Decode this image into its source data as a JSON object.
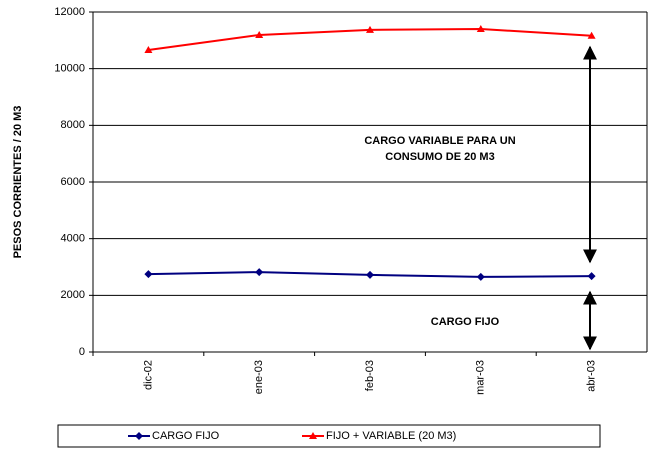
{
  "chart_data": {
    "type": "line",
    "y_label": "PESOS CORRIENTES / 20 M3",
    "categories": [
      "dic-02",
      "ene-03",
      "feb-03",
      "mar-03",
      "abr-03"
    ],
    "series": [
      {
        "name": "CARGO FIJO",
        "color": "#000080",
        "marker": "diamond",
        "values": [
          2750,
          2820,
          2720,
          2650,
          2680
        ]
      },
      {
        "name": "FIJO + VARIABLE (20 M3)",
        "color": "#ff0000",
        "marker": "triangle",
        "values": [
          10660,
          11190,
          11370,
          11400,
          11160
        ]
      }
    ],
    "annotations": [
      "CARGO  VARIABLE PARA UN",
      "CONSUMO DE 20 M3",
      "CARGO FIJO"
    ],
    "ylim": [
      0,
      12000
    ],
    "yticks": [
      0,
      2000,
      4000,
      6000,
      8000,
      10000,
      12000
    ],
    "grid": true,
    "legend": "bottom"
  }
}
